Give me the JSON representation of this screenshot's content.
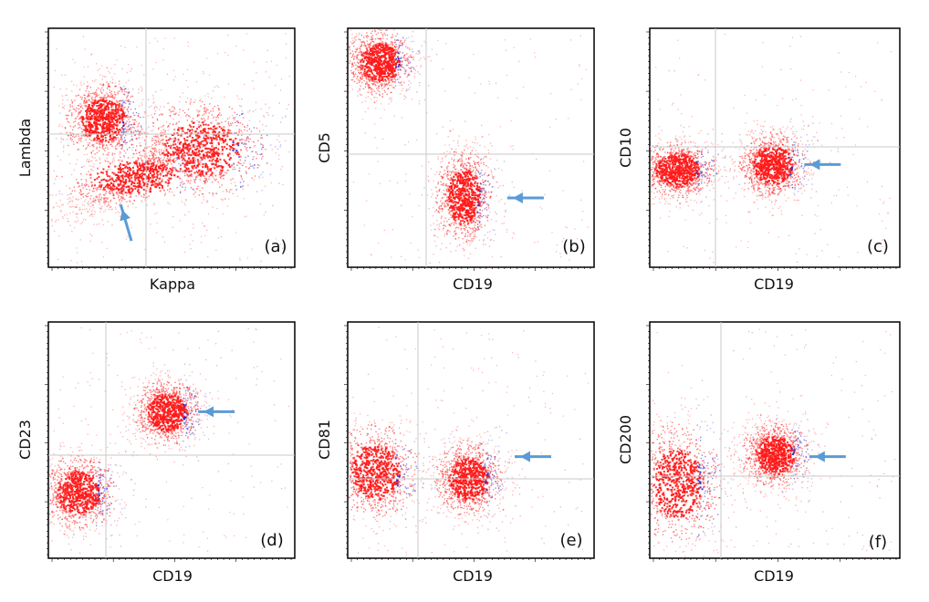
{
  "colors": {
    "population": "#ff1a1a",
    "highlight": "#2a2ac8",
    "arrow": "#5b9bd5",
    "quadrant": "#c8c8c8"
  },
  "chart_data": [
    {
      "type": "scatter",
      "panel_label": "(a)",
      "xlabel": "Kappa",
      "ylabel": "Lambda",
      "grid": "quadrant",
      "arrow": "up-left",
      "clusters": [
        {
          "population": "main band",
          "x_center": 0.35,
          "y_center": 0.38,
          "spread": [
            0.16,
            0.06
          ],
          "tilt": 0.45
        },
        {
          "population": "upper diffuse",
          "x_center": 0.22,
          "y_center": 0.62,
          "spread": [
            0.08,
            0.08
          ]
        },
        {
          "population": "right diffuse",
          "x_center": 0.62,
          "y_center": 0.5,
          "spread": [
            0.14,
            0.1
          ]
        }
      ]
    },
    {
      "type": "scatter",
      "panel_label": "(b)",
      "xlabel": "CD19",
      "ylabel": "CD5",
      "grid": "quadrant",
      "arrow": "left",
      "clusters": [
        {
          "population": "CD5+ CD19- (T cells)",
          "x_center": 0.13,
          "y_center": 0.86,
          "spread": [
            0.07,
            0.07
          ]
        },
        {
          "population": "CD5- CD19+ (B cells)",
          "x_center": 0.47,
          "y_center": 0.3,
          "spread": [
            0.06,
            0.1
          ]
        }
      ]
    },
    {
      "type": "scatter",
      "panel_label": "(c)",
      "xlabel": "CD19",
      "ylabel": "CD10",
      "grid": "quadrant",
      "arrow": "left",
      "clusters": [
        {
          "population": "CD19-",
          "x_center": 0.11,
          "y_center": 0.41,
          "spread": [
            0.08,
            0.06
          ]
        },
        {
          "population": "CD19+",
          "x_center": 0.49,
          "y_center": 0.43,
          "spread": [
            0.07,
            0.07
          ]
        }
      ]
    },
    {
      "type": "scatter",
      "panel_label": "(d)",
      "xlabel": "CD19",
      "ylabel": "CD23",
      "grid": "quadrant",
      "arrow": "left",
      "clusters": [
        {
          "population": "CD19- CD23-",
          "x_center": 0.12,
          "y_center": 0.28,
          "spread": [
            0.08,
            0.08
          ]
        },
        {
          "population": "CD19+ CD23+",
          "x_center": 0.48,
          "y_center": 0.62,
          "spread": [
            0.07,
            0.07
          ]
        }
      ]
    },
    {
      "type": "scatter",
      "panel_label": "(e)",
      "xlabel": "CD19",
      "ylabel": "CD81",
      "grid": "quadrant",
      "arrow": "left",
      "clusters": [
        {
          "population": "CD19-",
          "x_center": 0.11,
          "y_center": 0.37,
          "spread": [
            0.09,
            0.1
          ]
        },
        {
          "population": "CD19+",
          "x_center": 0.49,
          "y_center": 0.34,
          "spread": [
            0.07,
            0.08
          ]
        }
      ]
    },
    {
      "type": "scatter",
      "panel_label": "(f)",
      "xlabel": "CD19",
      "ylabel": "CD200",
      "grid": "quadrant",
      "arrow": "left",
      "clusters": [
        {
          "population": "CD19-",
          "x_center": 0.11,
          "y_center": 0.32,
          "spread": [
            0.09,
            0.13
          ]
        },
        {
          "population": "CD19+",
          "x_center": 0.5,
          "y_center": 0.44,
          "spread": [
            0.07,
            0.07
          ]
        }
      ]
    }
  ]
}
